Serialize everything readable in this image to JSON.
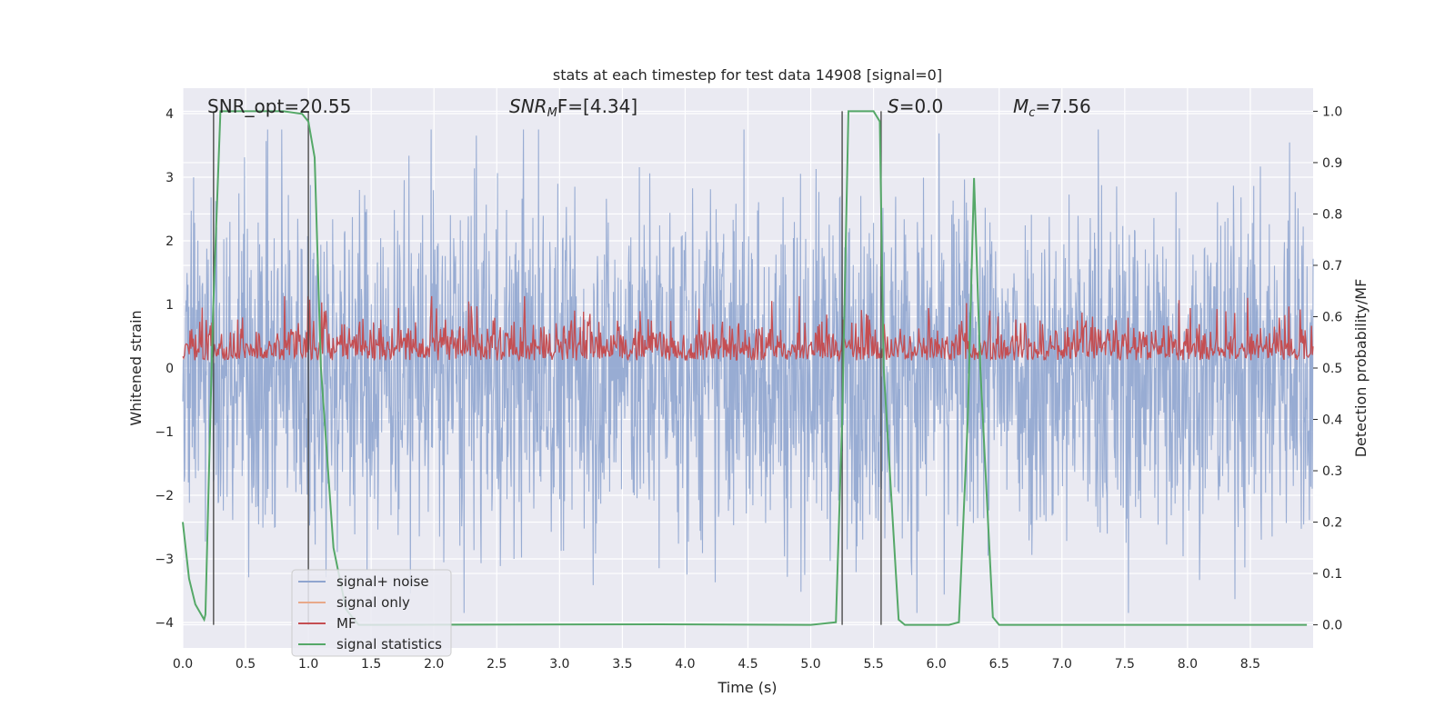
{
  "chart_data": {
    "type": "line",
    "title": "stats at each timestep for test data 14908 [signal=0]",
    "xlabel": "Time (s)",
    "ylabel_left": "Whitened strain",
    "ylabel_right": "Detection probability/MF",
    "xlim": [
      0.0,
      9.0
    ],
    "ylim_left": [
      -4.4,
      4.4
    ],
    "ylim_right": [
      -0.045,
      1.045
    ],
    "x_ticks": [
      "0.0",
      "0.5",
      "1.0",
      "1.5",
      "2.0",
      "2.5",
      "3.0",
      "3.5",
      "4.0",
      "4.5",
      "5.0",
      "5.5",
      "6.0",
      "6.5",
      "7.0",
      "7.5",
      "8.0",
      "8.5"
    ],
    "y_ticks_left": [
      "−4",
      "−3",
      "−2",
      "−1",
      "0",
      "1",
      "2",
      "3",
      "4"
    ],
    "y_ticks_right": [
      "0.0",
      "0.1",
      "0.2",
      "0.3",
      "0.4",
      "0.5",
      "0.6",
      "0.7",
      "0.8",
      "0.9",
      "1.0"
    ],
    "grid": true,
    "legend_position": "lower-left",
    "annotations": {
      "snr_opt": "SNR_opt=20.55",
      "snr_mf_sym": "SNR",
      "snr_mf_sub": "M",
      "snr_mf_rest": "F=[4.34]",
      "s_sym": "S",
      "s_rest": "=0.0",
      "mc_sym": "M",
      "mc_sub": "c",
      "mc_rest": "=7.56"
    },
    "series": [
      {
        "name": "signal+ noise",
        "color": "#8fa5cf",
        "style": "dense noise, amplitude approx ±2.5 with peaks to ±3.8"
      },
      {
        "name": "signal only",
        "color": "#e8a98a",
        "values": []
      },
      {
        "name": "MF",
        "color": "#c44e52",
        "style": "right axis, baseline ~0.52 with noise 0.49–0.63"
      },
      {
        "name": "signal statistics",
        "color": "#55a868",
        "x": [
          0.0,
          0.05,
          0.1,
          0.17,
          0.18,
          0.24,
          0.3,
          0.8,
          0.95,
          1.0,
          1.05,
          1.1,
          1.2,
          1.3,
          1.4,
          1.5,
          3.8,
          5.0,
          5.2,
          5.25,
          5.3,
          5.5,
          5.55,
          5.58,
          5.7,
          5.75,
          6.1,
          6.18,
          6.25,
          6.3,
          6.35,
          6.45,
          6.5,
          8.95
        ],
        "values": [
          0.2,
          0.09,
          0.04,
          0.01,
          0.02,
          0.6,
          1.0,
          1.0,
          0.995,
          0.98,
          0.91,
          0.5,
          0.15,
          0.03,
          0.0,
          0.0,
          0.001,
          0.0,
          0.005,
          0.4,
          1.0,
          1.0,
          0.98,
          0.5,
          0.01,
          0.0,
          0.0,
          0.005,
          0.4,
          0.87,
          0.5,
          0.015,
          0.0,
          0.0
        ]
      }
    ],
    "vertical_lines": [
      {
        "x": 0.245,
        "ymin": 0.0,
        "ymax": 1.0
      },
      {
        "x": 1.0,
        "ymin": 0.0,
        "ymax": 1.0
      },
      {
        "x": 5.25,
        "ymin": 0.0,
        "ymax": 1.0
      },
      {
        "x": 5.56,
        "ymin": 0.0,
        "ymax": 1.0
      }
    ],
    "colors": {
      "plot_bg": "#eaeaf2",
      "grid": "#ffffff",
      "vline": "#4c4c4c"
    }
  }
}
